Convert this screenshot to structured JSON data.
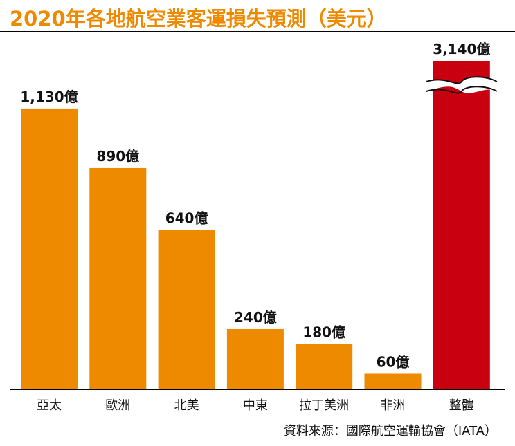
{
  "chart_data": {
    "type": "bar",
    "title": "2020年各地航空業客運損失預測（美元）",
    "categories": [
      "亞太",
      "歐洲",
      "北美",
      "中東",
      "拉丁美洲",
      "非洲",
      "整體"
    ],
    "values": [
      1130,
      890,
      640,
      240,
      180,
      60,
      3140
    ],
    "value_labels": [
      "1,130億",
      "890億",
      "640億",
      "240億",
      "180億",
      "60億",
      "3,140億"
    ],
    "unit": "億美元",
    "axis_break": {
      "category": "整體"
    },
    "grid": false,
    "legend": "none",
    "source": "資料來源：國際航空運輸協會（IATA）"
  },
  "colors": {
    "title": "#ee8a00",
    "bar_regions": "#ee8a00",
    "bar_total": "#c8000f",
    "baseline": "#000000",
    "text": "#111111"
  }
}
